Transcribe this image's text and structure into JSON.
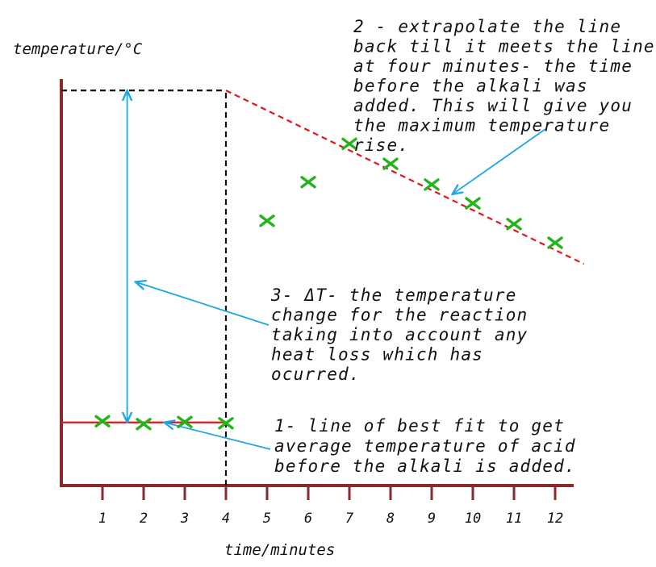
{
  "chart_data": {
    "type": "scatter",
    "title": "",
    "xlabel": "time/minutes",
    "ylabel": "temperature/°C",
    "xlim": [
      0,
      12.5
    ],
    "ylim": [
      0,
      100
    ],
    "x_ticks": [
      1,
      2,
      3,
      4,
      5,
      6,
      7,
      8,
      9,
      10,
      11,
      12
    ],
    "x_tick_labels": [
      "1",
      "2",
      "3",
      "4",
      "5",
      "6",
      "7",
      "8",
      "9",
      "10",
      "11",
      "12"
    ],
    "grid": false,
    "series": [
      {
        "points": [
          {
            "x": 1,
            "y": 15.8
          },
          {
            "x": 2,
            "y": 15.1
          },
          {
            "x": 3,
            "y": 15.6
          },
          {
            "x": 4,
            "y": 15.3
          },
          {
            "x": 5,
            "y": 65.0
          },
          {
            "x": 6,
            "y": 74.5
          },
          {
            "x": 7,
            "y": 83.9
          },
          {
            "x": 8,
            "y": 79.0
          },
          {
            "x": 9,
            "y": 73.9
          },
          {
            "x": 10,
            "y": 69.3
          },
          {
            "x": 11,
            "y": 64.2
          },
          {
            "x": 12,
            "y": 59.6
          }
        ],
        "color": "#22b41a",
        "marker": "x"
      }
    ],
    "lines": [
      {
        "kind": "best-fit-before",
        "from": [
          0,
          15.5
        ],
        "to": [
          4,
          15.5
        ],
        "color": "#e0161c",
        "dash": "solid"
      },
      {
        "kind": "extrapolation",
        "from": [
          4,
          97
        ],
        "to": [
          12.7,
          54.4
        ],
        "color": "#e0161c",
        "dash": "dashed"
      },
      {
        "kind": "time-of-addition",
        "from": [
          4,
          0
        ],
        "to": [
          4,
          97
        ],
        "color": "#111111",
        "dash": "dashed"
      },
      {
        "kind": "maximum-temperature",
        "from": [
          0,
          97
        ],
        "to": [
          4,
          97
        ],
        "color": "#111111",
        "dash": "dashed"
      },
      {
        "kind": "delta-t",
        "from": [
          1.6,
          15.5
        ],
        "to": [
          1.6,
          97
        ],
        "color": "#1aa7e6",
        "dash": "solid",
        "arrows": "both"
      }
    ],
    "annotations": [
      {
        "id": "note-1",
        "lines": [
          "1- line of best fit to get",
          "average temperature of acid",
          "before the alkali is added."
        ],
        "arrow_target": [
          2.5,
          15.5
        ]
      },
      {
        "id": "note-2",
        "lines": [
          "2 - extrapolate the line",
          "back till it meets the line",
          "at four minutes- the time",
          "before the alkali was",
          "added.  This will give you",
          "the maximum temperature",
          "rise."
        ],
        "arrow_target": [
          9.5,
          71.5
        ]
      },
      {
        "id": "note-3",
        "lines": [
          "3- ΔT- the temperature",
          "change for the reaction",
          "taking into account any",
          "heat loss which has",
          "ocurred."
        ],
        "arrow_target": [
          1.8,
          50
        ]
      }
    ],
    "colors": {
      "axis": "#8b2a2a",
      "best_fit": "#e0161c",
      "marker": "#22b41a",
      "guide": "#111111",
      "arrow": "#1aa7e6"
    }
  }
}
